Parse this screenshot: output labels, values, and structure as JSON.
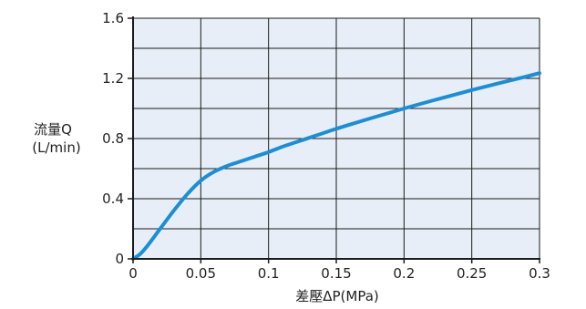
{
  "chart_data": {
    "type": "line",
    "title": "",
    "xlabel": "差壓ΔP(MPa)",
    "ylabel_lines": [
      "流量Q",
      "(L/min)"
    ],
    "xlim": [
      0,
      0.3
    ],
    "ylim": [
      0,
      1.6
    ],
    "x_ticks": [
      0,
      0.05,
      0.1,
      0.15,
      0.2,
      0.25,
      0.3
    ],
    "x_tick_labels": [
      "0",
      "0.05",
      "0.1",
      "0.15",
      "0.2",
      "0.25",
      "0.3"
    ],
    "y_ticks": [
      0,
      0.4,
      0.8,
      1.2,
      1.6
    ],
    "y_tick_labels": [
      "0",
      "0.4",
      "0.8",
      "1.2",
      "1.6"
    ],
    "x_grid": [
      0.05,
      0.1,
      0.15,
      0.2,
      0.25
    ],
    "y_grid": [
      0.2,
      0.4,
      0.6,
      0.8,
      1.0,
      1.2,
      1.4
    ],
    "grid": true,
    "legend": "none",
    "series": [
      {
        "x": [
          0,
          0.005,
          0.01,
          0.02,
          0.03,
          0.04,
          0.05,
          0.06,
          0.07,
          0.08,
          0.09,
          0.1,
          0.11,
          0.12,
          0.13,
          0.14,
          0.15,
          0.16,
          0.17,
          0.18,
          0.19,
          0.2,
          0.21,
          0.22,
          0.23,
          0.24,
          0.25,
          0.26,
          0.27,
          0.28,
          0.29,
          0.3
        ],
        "y": [
          0,
          0.03,
          0.08,
          0.2,
          0.32,
          0.43,
          0.52,
          0.58,
          0.62,
          0.65,
          0.68,
          0.71,
          0.745,
          0.775,
          0.805,
          0.835,
          0.865,
          0.893,
          0.92,
          0.947,
          0.973,
          1.0,
          1.025,
          1.05,
          1.074,
          1.098,
          1.122,
          1.145,
          1.168,
          1.19,
          1.212,
          1.235
        ],
        "color": "#1a8fd8"
      }
    ],
    "colors": {
      "plot_background": "#e8eef7",
      "grid": "#1a1a1a",
      "axis": "#1a1a1a",
      "line": "#1a8fd8"
    }
  }
}
